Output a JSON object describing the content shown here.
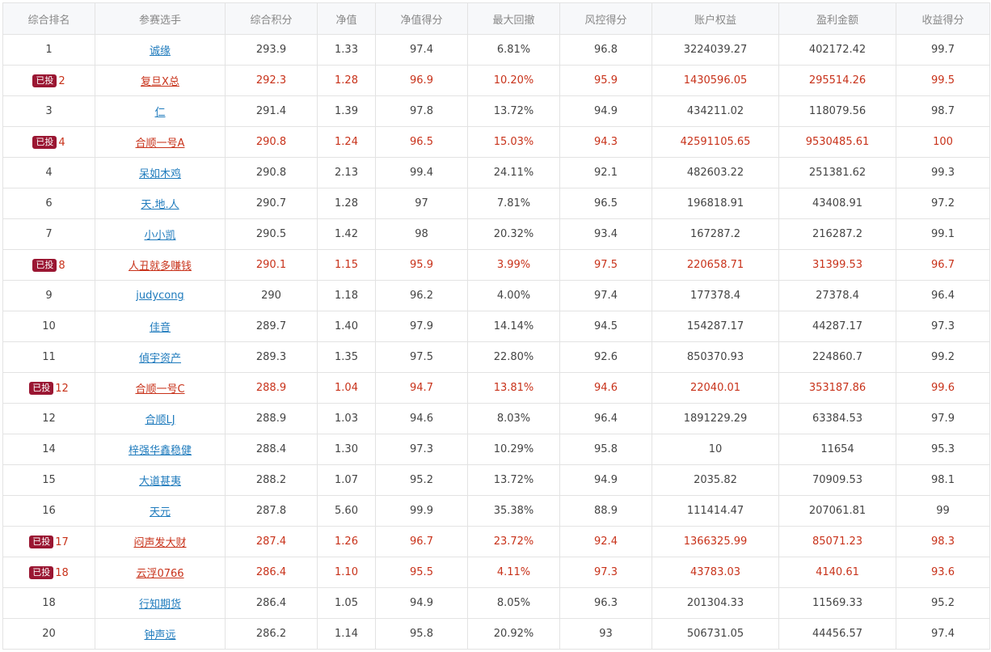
{
  "table": {
    "headers": [
      "综合排名",
      "参赛选手",
      "综合积分",
      "净值",
      "净值得分",
      "最大回撤",
      "风控得分",
      "账户权益",
      "盈利金额",
      "收益得分"
    ],
    "badge_label": "已投",
    "invested_color": "#c8321a",
    "badge_color": "#9a1632",
    "link_color": "#1f7bbd",
    "rows": [
      {
        "rank": "1",
        "invested": false,
        "cells": [
          "诚缘",
          "293.9",
          "1.33",
          "97.4",
          "6.81%",
          "96.8",
          "3224039.27",
          "402172.42",
          "99.7"
        ]
      },
      {
        "rank": "2",
        "invested": true,
        "cells": [
          "复旦X总",
          "292.3",
          "1.28",
          "96.9",
          "10.20%",
          "95.9",
          "1430596.05",
          "295514.26",
          "99.5"
        ]
      },
      {
        "rank": "3",
        "invested": false,
        "cells": [
          "仁",
          "291.4",
          "1.39",
          "97.8",
          "13.72%",
          "94.9",
          "434211.02",
          "118079.56",
          "98.7"
        ]
      },
      {
        "rank": "4",
        "invested": true,
        "cells": [
          "合顺一号A",
          "290.8",
          "1.24",
          "96.5",
          "15.03%",
          "94.3",
          "42591105.65",
          "9530485.61",
          "100"
        ]
      },
      {
        "rank": "4",
        "invested": false,
        "cells": [
          "呆如木鸡",
          "290.8",
          "2.13",
          "99.4",
          "24.11%",
          "92.1",
          "482603.22",
          "251381.62",
          "99.3"
        ]
      },
      {
        "rank": "6",
        "invested": false,
        "cells": [
          "天.地.人",
          "290.7",
          "1.28",
          "97",
          "7.81%",
          "96.5",
          "196818.91",
          "43408.91",
          "97.2"
        ]
      },
      {
        "rank": "7",
        "invested": false,
        "cells": [
          "小小凯",
          "290.5",
          "1.42",
          "98",
          "20.32%",
          "93.4",
          "167287.2",
          "216287.2",
          "99.1"
        ]
      },
      {
        "rank": "8",
        "invested": true,
        "cells": [
          "人丑就多赚钱",
          "290.1",
          "1.15",
          "95.9",
          "3.99%",
          "97.5",
          "220658.71",
          "31399.53",
          "96.7"
        ]
      },
      {
        "rank": "9",
        "invested": false,
        "cells": [
          "judycong",
          "290",
          "1.18",
          "96.2",
          "4.00%",
          "97.4",
          "177378.4",
          "27378.4",
          "96.4"
        ]
      },
      {
        "rank": "10",
        "invested": false,
        "cells": [
          "佳音",
          "289.7",
          "1.40",
          "97.9",
          "14.14%",
          "94.5",
          "154287.17",
          "44287.17",
          "97.3"
        ]
      },
      {
        "rank": "11",
        "invested": false,
        "cells": [
          "偵宇资产",
          "289.3",
          "1.35",
          "97.5",
          "22.80%",
          "92.6",
          "850370.93",
          "224860.7",
          "99.2"
        ]
      },
      {
        "rank": "12",
        "invested": true,
        "cells": [
          "合顺一号C",
          "288.9",
          "1.04",
          "94.7",
          "13.81%",
          "94.6",
          "22040.01",
          "353187.86",
          "99.6"
        ]
      },
      {
        "rank": "12",
        "invested": false,
        "cells": [
          "合顺LJ",
          "288.9",
          "1.03",
          "94.6",
          "8.03%",
          "96.4",
          "1891229.29",
          "63384.53",
          "97.9"
        ]
      },
      {
        "rank": "14",
        "invested": false,
        "cells": [
          "梓强华鑫稳健",
          "288.4",
          "1.30",
          "97.3",
          "10.29%",
          "95.8",
          "10",
          "11654",
          "95.3"
        ]
      },
      {
        "rank": "15",
        "invested": false,
        "cells": [
          "大道甚夷",
          "288.2",
          "1.07",
          "95.2",
          "13.72%",
          "94.9",
          "2035.82",
          "70909.53",
          "98.1"
        ]
      },
      {
        "rank": "16",
        "invested": false,
        "cells": [
          "天元",
          "287.8",
          "5.60",
          "99.9",
          "35.38%",
          "88.9",
          "111414.47",
          "207061.81",
          "99"
        ]
      },
      {
        "rank": "17",
        "invested": true,
        "cells": [
          "闷声发大财",
          "287.4",
          "1.26",
          "96.7",
          "23.72%",
          "92.4",
          "1366325.99",
          "85071.23",
          "98.3"
        ]
      },
      {
        "rank": "18",
        "invested": true,
        "cells": [
          "云浮0766",
          "286.4",
          "1.10",
          "95.5",
          "4.11%",
          "97.3",
          "43783.03",
          "4140.61",
          "93.6"
        ]
      },
      {
        "rank": "18",
        "invested": false,
        "cells": [
          "行知期货",
          "286.4",
          "1.05",
          "94.9",
          "8.05%",
          "96.3",
          "201304.33",
          "11569.33",
          "95.2"
        ]
      },
      {
        "rank": "20",
        "invested": false,
        "cells": [
          "钟声远",
          "286.2",
          "1.14",
          "95.8",
          "20.92%",
          "93",
          "506731.05",
          "44456.57",
          "97.4"
        ]
      }
    ]
  }
}
